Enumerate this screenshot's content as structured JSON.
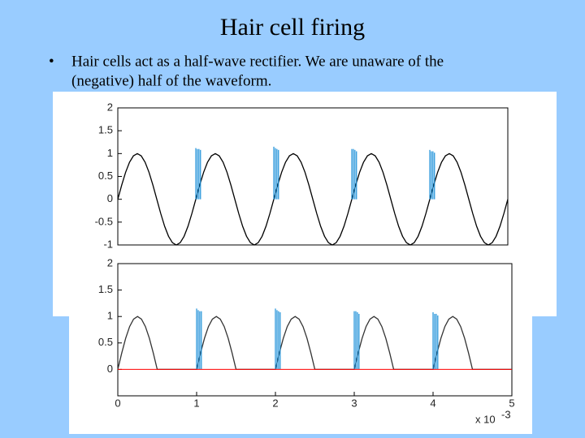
{
  "title": "Hair cell firing",
  "bullet": [
    "Hair cells act as a half-wave rectifier.  We are unaware of the",
    "(negative) half of the waveform."
  ],
  "chart_data": [
    {
      "type": "line",
      "x": [
        0,
        0.05,
        0.1,
        0.15,
        0.2,
        0.25,
        0.3,
        0.35,
        0.4,
        0.45,
        0.5,
        0.55,
        0.6,
        0.65,
        0.7,
        0.75,
        0.8,
        0.85,
        0.9,
        0.95,
        1,
        1.05,
        1.1,
        1.15,
        1.2,
        1.25,
        1.3,
        1.35,
        1.4,
        1.45,
        1.5,
        1.55,
        1.6,
        1.65,
        1.7,
        1.75,
        1.8,
        1.85,
        1.9,
        1.95,
        2,
        2.05,
        2.1,
        2.15,
        2.2,
        2.25,
        2.3,
        2.35,
        2.4,
        2.45,
        2.5,
        2.55,
        2.6,
        2.65,
        2.7,
        2.75,
        2.8,
        2.85,
        2.9,
        2.95,
        3,
        3.05,
        3.1,
        3.15,
        3.2,
        3.25,
        3.3,
        3.35,
        3.4,
        3.45,
        3.5,
        3.55,
        3.6,
        3.65,
        3.7,
        3.75,
        3.8,
        3.85,
        3.9,
        3.95,
        4,
        4.05,
        4.1,
        4.15,
        4.2,
        4.25,
        4.3,
        4.35,
        4.4,
        4.45,
        4.5,
        4.55,
        4.6,
        4.65,
        4.7,
        4.75,
        4.8,
        4.85,
        4.9,
        4.95,
        5
      ],
      "series": [
        {
          "color": "#000000",
          "values": [
            0,
            0.31,
            0.59,
            0.81,
            0.95,
            1,
            0.95,
            0.81,
            0.59,
            0.31,
            0,
            -0.31,
            -0.59,
            -0.81,
            -0.95,
            -1,
            -0.95,
            -0.81,
            -0.59,
            -0.31,
            0,
            0.31,
            0.59,
            0.81,
            0.95,
            1,
            0.95,
            0.81,
            0.59,
            0.31,
            0,
            -0.31,
            -0.59,
            -0.81,
            -0.95,
            -1,
            -0.95,
            -0.81,
            -0.59,
            -0.31,
            0,
            0.31,
            0.59,
            0.81,
            0.95,
            1,
            0.95,
            0.81,
            0.59,
            0.31,
            0,
            -0.31,
            -0.59,
            -0.81,
            -0.95,
            -1,
            -0.95,
            -0.81,
            -0.59,
            -0.31,
            0,
            0.31,
            0.59,
            0.81,
            0.95,
            1,
            0.95,
            0.81,
            0.59,
            0.31,
            0,
            -0.31,
            -0.59,
            -0.81,
            -0.95,
            -1,
            -0.95,
            -0.81,
            -0.59,
            -0.31,
            0,
            0.31,
            0.59,
            0.81,
            0.95,
            1,
            0.95,
            0.81,
            0.59,
            0.31,
            0,
            -0.31,
            -0.59,
            -0.81,
            -0.95,
            -1,
            -0.95,
            -0.81,
            -0.59,
            -0.31,
            0
          ]
        },
        {
          "color": "#1a8fd8",
          "style": "stem",
          "x": [
            1,
            1.02,
            1.04,
            1.06,
            2,
            2.02,
            2.04,
            2.06,
            3,
            3.02,
            3.04,
            3.06,
            4,
            4.02,
            4.04,
            4.06
          ],
          "values": [
            1.12,
            1.1,
            1.1,
            1.08,
            1.15,
            1.12,
            1.1,
            1.08,
            1.1,
            1.1,
            1.08,
            1.05,
            1.08,
            1.05,
            1.05,
            1.02
          ]
        }
      ],
      "xlim": [
        0,
        5
      ],
      "ylim": [
        -1,
        2
      ],
      "yticks": [
        2,
        1.5,
        1,
        0.5,
        0,
        -0.5,
        -1
      ]
    },
    {
      "type": "line",
      "x": [
        0,
        0.05,
        0.1,
        0.15,
        0.2,
        0.25,
        0.3,
        0.35,
        0.4,
        0.45,
        0.5,
        0.55,
        0.6,
        0.65,
        0.7,
        0.75,
        0.8,
        0.85,
        0.9,
        0.95,
        1,
        1.05,
        1.1,
        1.15,
        1.2,
        1.25,
        1.3,
        1.35,
        1.4,
        1.45,
        1.5,
        1.55,
        1.6,
        1.65,
        1.7,
        1.75,
        1.8,
        1.85,
        1.9,
        1.95,
        2,
        2.05,
        2.1,
        2.15,
        2.2,
        2.25,
        2.3,
        2.35,
        2.4,
        2.45,
        2.5,
        2.55,
        2.6,
        2.65,
        2.7,
        2.75,
        2.8,
        2.85,
        2.9,
        2.95,
        3,
        3.05,
        3.1,
        3.15,
        3.2,
        3.25,
        3.3,
        3.35,
        3.4,
        3.45,
        3.5,
        3.55,
        3.6,
        3.65,
        3.7,
        3.75,
        3.8,
        3.85,
        3.9,
        3.95,
        4,
        4.05,
        4.1,
        4.15,
        4.2,
        4.25,
        4.3,
        4.35,
        4.4,
        4.45,
        4.5,
        4.55,
        4.6,
        4.65,
        4.7,
        4.75,
        4.8,
        4.85,
        4.9,
        4.95,
        5
      ],
      "series": [
        {
          "color": "#333333",
          "values": [
            0,
            0.31,
            0.59,
            0.81,
            0.95,
            1,
            0.95,
            0.81,
            0.59,
            0.31,
            0,
            0,
            0,
            0,
            0,
            0,
            0,
            0,
            0,
            0,
            0,
            0.31,
            0.59,
            0.81,
            0.95,
            1,
            0.95,
            0.81,
            0.59,
            0.31,
            0,
            0,
            0,
            0,
            0,
            0,
            0,
            0,
            0,
            0,
            0,
            0.31,
            0.59,
            0.81,
            0.95,
            1,
            0.95,
            0.81,
            0.59,
            0.31,
            0,
            0,
            0,
            0,
            0,
            0,
            0,
            0,
            0,
            0,
            0,
            0.31,
            0.59,
            0.81,
            0.95,
            1,
            0.95,
            0.81,
            0.59,
            0.31,
            0,
            0,
            0,
            0,
            0,
            0,
            0,
            0,
            0,
            0,
            0,
            0.31,
            0.59,
            0.81,
            0.95,
            1,
            0.95,
            0.81,
            0.59,
            0.31,
            0,
            0,
            0,
            0,
            0,
            0,
            0,
            0,
            0,
            0,
            0
          ]
        },
        {
          "color": "#1a8fd8",
          "style": "stem",
          "x": [
            1,
            1.02,
            1.04,
            1.06,
            2,
            2.02,
            2.04,
            2.06,
            3,
            3.02,
            3.04,
            3.06,
            4,
            4.02,
            4.04,
            4.06
          ],
          "values": [
            1.15,
            1.12,
            1.1,
            1.1,
            1.15,
            1.12,
            1.1,
            1.08,
            1.1,
            1.1,
            1.08,
            1.05,
            1.08,
            1.05,
            1.05,
            1.02
          ]
        }
      ],
      "hline": 0,
      "hline_color": "#ff0000",
      "xlim": [
        0,
        5
      ],
      "ylim": [
        -0.5,
        2
      ],
      "xticks": [
        0,
        1,
        2,
        3,
        4,
        5
      ],
      "yticks": [
        0,
        0.5,
        1,
        1.5,
        2
      ],
      "xscale": {
        "base": "x 10",
        "exponent": "-3"
      }
    }
  ]
}
